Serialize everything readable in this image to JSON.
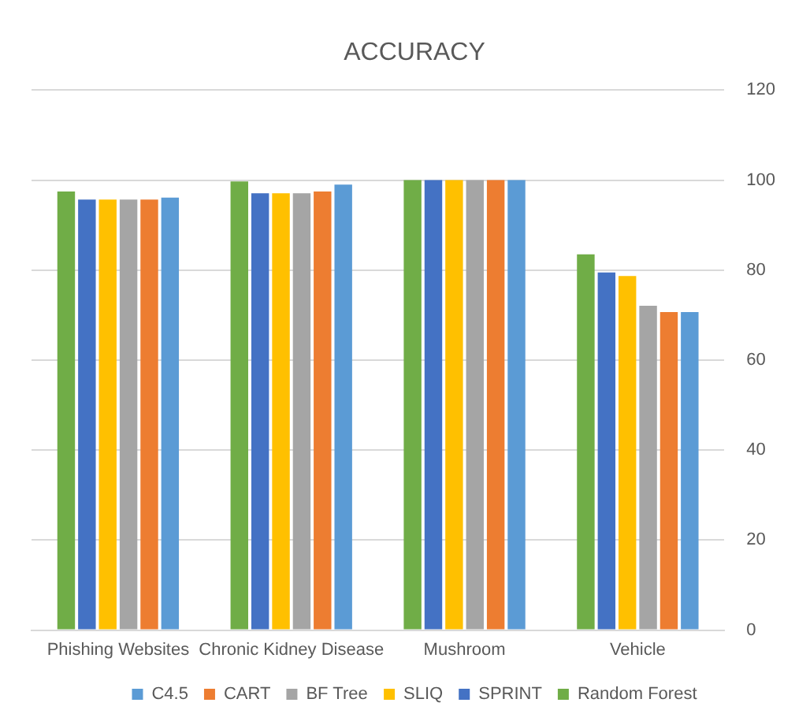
{
  "chart_data": {
    "type": "bar",
    "title": "ACCURACY",
    "categories": [
      "Phishing Websites",
      "Chronic Kidney Disease",
      "Mushroom",
      "Vehicle"
    ],
    "series": [
      {
        "name": "Random Forest",
        "color": "#70ad47",
        "values": [
          97.5,
          99.7,
          100,
          83.5
        ]
      },
      {
        "name": "SPRINT",
        "color": "#4472c4",
        "values": [
          95.7,
          97.1,
          100,
          79.5
        ]
      },
      {
        "name": "SLIQ",
        "color": "#ffc000",
        "values": [
          95.7,
          97.1,
          100,
          78.7
        ]
      },
      {
        "name": "BF Tree",
        "color": "#a5a5a5",
        "values": [
          95.7,
          97.1,
          100,
          72.1
        ]
      },
      {
        "name": "CART",
        "color": "#ed7d31",
        "values": [
          95.7,
          97.5,
          100,
          70.7
        ]
      },
      {
        "name": "C4.5",
        "color": "#5b9bd5",
        "values": [
          96.1,
          99.0,
          100,
          70.7
        ]
      }
    ],
    "ylim": [
      0,
      120
    ],
    "yticks": [
      0,
      20,
      40,
      60,
      80,
      100,
      120
    ],
    "grid": "y",
    "legend": "bottom"
  }
}
